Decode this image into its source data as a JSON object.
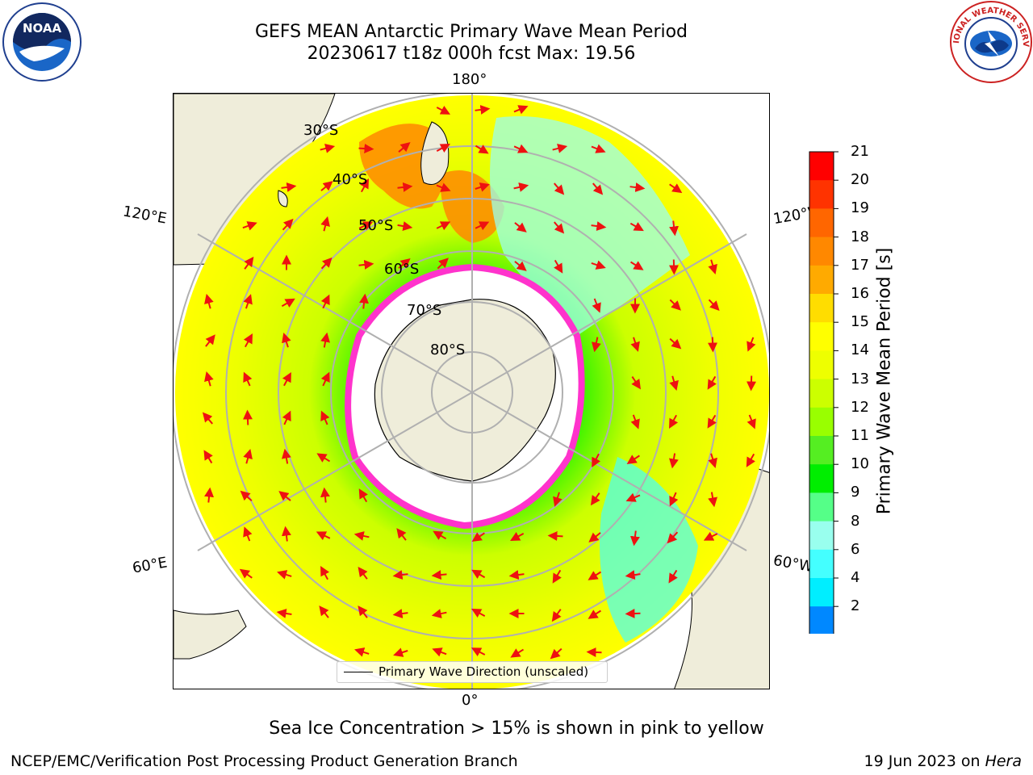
{
  "title": {
    "line1": "GEFS MEAN Antarctic Primary Wave Mean Period",
    "line2": "20230617 t18z 000h fcst   Max: 19.56"
  },
  "logos": {
    "left": {
      "text": "NOAA",
      "icon": "noaa-logo"
    },
    "right": {
      "text": "NATIONAL WEATHER SERVICE",
      "icon": "nws-logo"
    }
  },
  "map": {
    "longitude_labels": {
      "top": "180°",
      "bottom": "0°",
      "upper_left": "120°E",
      "upper_right": "120°W",
      "lower_left": "60°E",
      "lower_right": "60°W"
    },
    "latitude_labels": [
      "30°S",
      "40°S",
      "50°S",
      "60°S",
      "70°S",
      "80°S"
    ],
    "legend": "Primary Wave Direction (unscaled)",
    "colors": {
      "land": "#efedda",
      "ice": "#ffffff",
      "sea_ice_edge": "#ff33cc",
      "arrows": "#ee1111",
      "grid": "#b0b0b0"
    }
  },
  "colorbar": {
    "label": "Primary Wave Mean Period [s]",
    "ticks": [
      "21",
      "20",
      "19",
      "18",
      "17",
      "16",
      "15",
      "14",
      "13",
      "12",
      "11",
      "10",
      "9",
      "8",
      "6",
      "4",
      "2"
    ],
    "colors": [
      "#ff0000",
      "#ff3300",
      "#ff6600",
      "#ff8800",
      "#ffaa00",
      "#ffdd00",
      "#ffff00",
      "#eeff00",
      "#ccff00",
      "#99ff00",
      "#55ee22",
      "#00ee00",
      "#55ff88",
      "#99ffee",
      "#44ffff",
      "#00eeff",
      "#0088ff",
      "#0022ff"
    ]
  },
  "note": "Sea Ice Concentration > 15% is shown in pink to yellow",
  "footer": {
    "left": "NCEP/EMC/Verification Post Processing Product Generation Branch",
    "right_prefix": "19 Jun 2023 on ",
    "right_host": "Hera"
  }
}
